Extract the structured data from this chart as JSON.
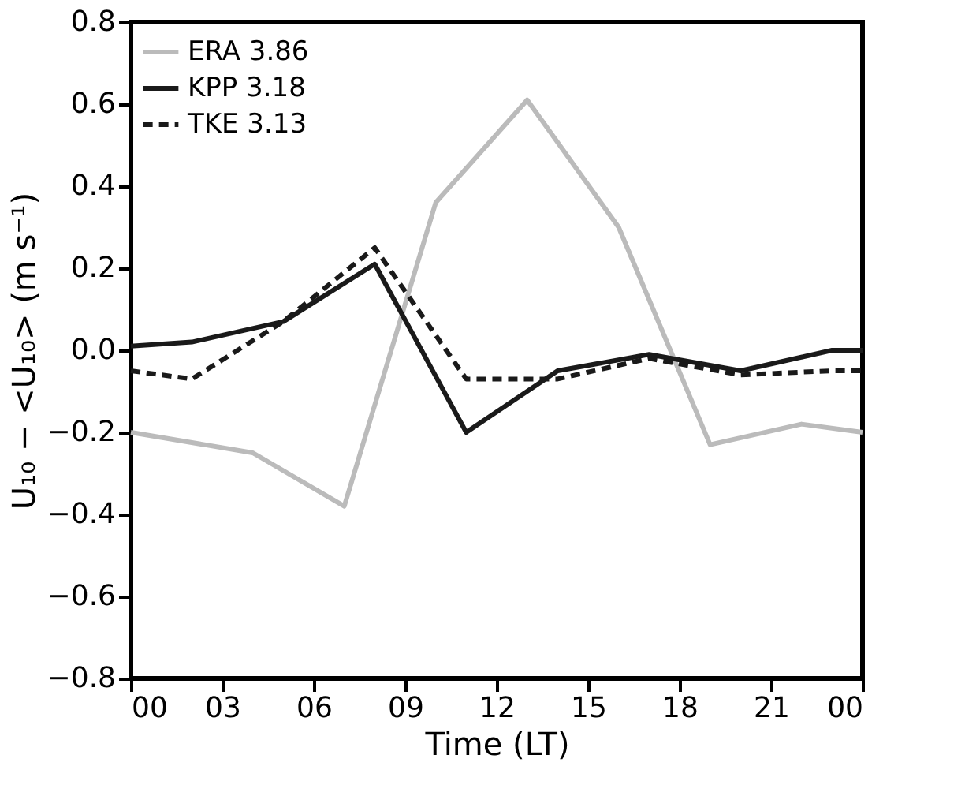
{
  "chart_data": {
    "type": "line",
    "xlabel": "Time (LT)",
    "ylabel": "U₁₀ − <U₁₀> (m s⁻¹)",
    "xlim": [
      0,
      24
    ],
    "ylim": [
      -0.8,
      0.8
    ],
    "xticks": [
      {
        "value": 0,
        "label": "00"
      },
      {
        "value": 3,
        "label": "03"
      },
      {
        "value": 6,
        "label": "06"
      },
      {
        "value": 9,
        "label": "09"
      },
      {
        "value": 12,
        "label": "12"
      },
      {
        "value": 15,
        "label": "15"
      },
      {
        "value": 18,
        "label": "18"
      },
      {
        "value": 21,
        "label": "21"
      },
      {
        "value": 24,
        "label": "00"
      }
    ],
    "yticks": [
      -0.8,
      -0.6,
      -0.4,
      -0.2,
      {
        "value": 0,
        "label": "0.0"
      },
      0.2,
      0.4,
      0.6,
      0.8
    ],
    "grid": false,
    "legend": "top left",
    "marker": "none",
    "series": [
      {
        "name": "ERA  3.86",
        "color": "#bbbbbb",
        "line_style": "solid",
        "x": [
          0,
          4,
          7,
          10,
          13,
          16,
          19,
          22,
          24
        ],
        "values": [
          -0.2,
          -0.25,
          -0.38,
          0.36,
          0.61,
          0.3,
          -0.23,
          -0.18,
          -0.2
        ]
      },
      {
        "name": "KPP  3.18",
        "color": "#1a1a1a",
        "line_style": "solid",
        "x": [
          0,
          2,
          5,
          8,
          11,
          14,
          17,
          20,
          23,
          24
        ],
        "values": [
          0.01,
          0.02,
          0.07,
          0.21,
          -0.2,
          -0.05,
          -0.01,
          -0.05,
          0.0,
          0.0
        ]
      },
      {
        "name": "TKE  3.13",
        "color": "#1a1a1a",
        "line_style": "dashed",
        "x": [
          0,
          2,
          5,
          8,
          11,
          14,
          17,
          20,
          23,
          24
        ],
        "values": [
          -0.05,
          -0.07,
          0.07,
          0.25,
          -0.07,
          -0.07,
          -0.02,
          -0.06,
          -0.05,
          -0.05
        ]
      }
    ]
  }
}
